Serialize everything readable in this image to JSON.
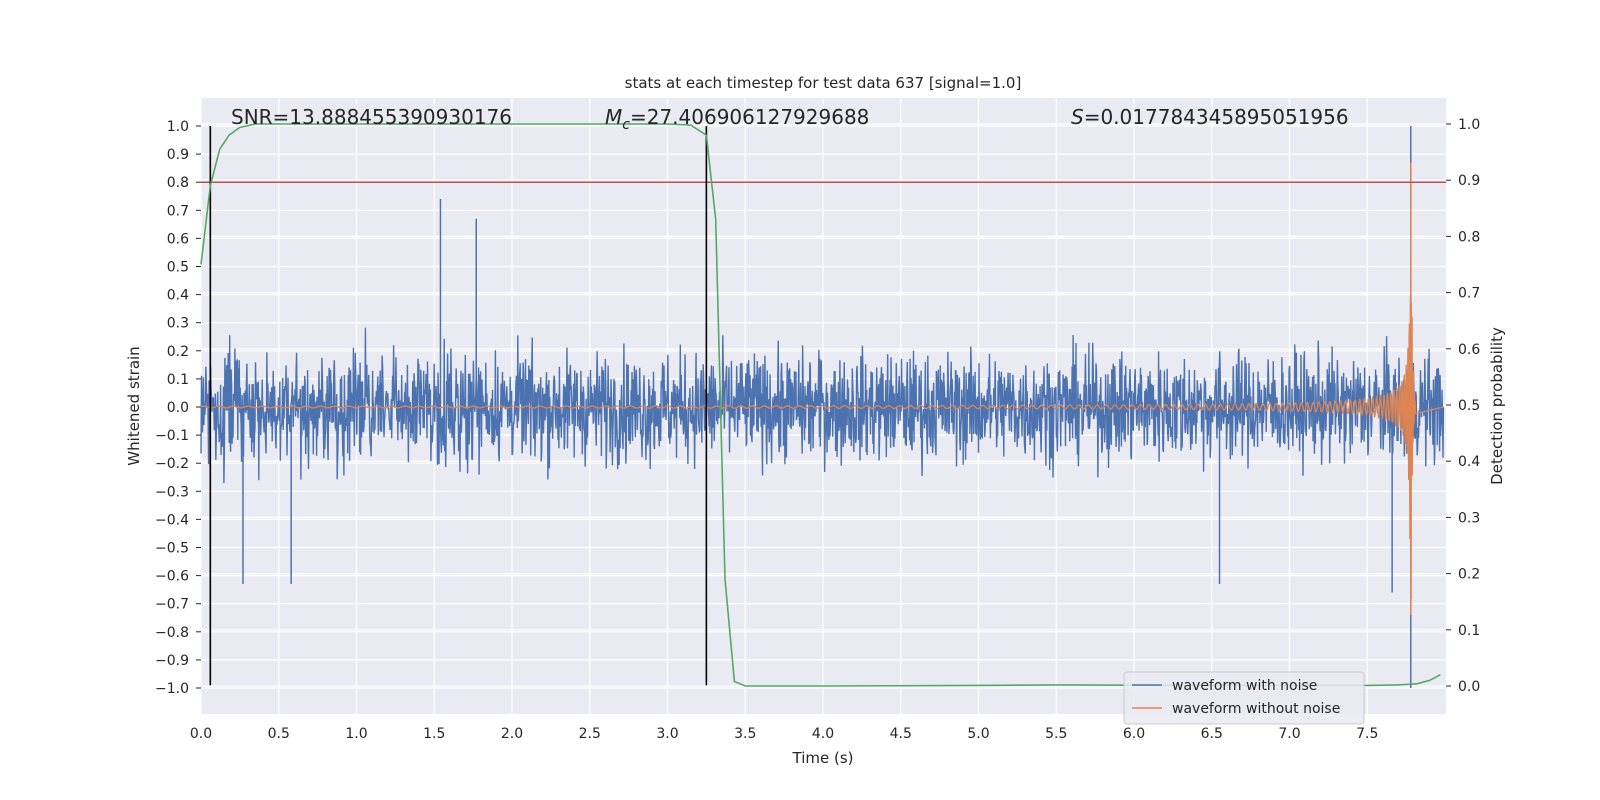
{
  "chart_data": {
    "type": "line",
    "title": "stats at each timestep for test data 637 [signal=1.0]",
    "xlabel": "Time (s)",
    "ylabel_left": "Whitened strain",
    "ylabel_right": "Detection probability",
    "xlim": [
      0.0,
      7.99
    ],
    "ylim_left": [
      -1.08,
      1.08
    ],
    "ylim_right": [
      -0.04,
      1.04
    ],
    "x_ticks": [
      "0.0",
      "0.5",
      "1.0",
      "1.5",
      "2.0",
      "2.5",
      "3.0",
      "3.5",
      "4.0",
      "4.5",
      "5.0",
      "5.5",
      "6.0",
      "6.5",
      "7.0",
      "7.5"
    ],
    "y_left_ticks": [
      "1.0",
      "0.9",
      "0.8",
      "0.7",
      "0.6",
      "0.5",
      "0.4",
      "0.3",
      "0.2",
      "0.1",
      "0.0",
      "−0.1",
      "−0.2",
      "−0.3",
      "−0.4",
      "−0.5",
      "−0.6",
      "−0.7",
      "−0.8",
      "−0.9",
      "−1.0"
    ],
    "y_right_ticks": [
      "1.0",
      "0.9",
      "0.8",
      "0.7",
      "0.6",
      "0.5",
      "0.4",
      "0.3",
      "0.2",
      "0.1",
      "0.0"
    ],
    "annotations": {
      "snr": "SNR=13.888455390930176",
      "mc_symbol": "M",
      "mc_subscript": "c",
      "mc_value": "=27.406906127929688",
      "s_symbol": "S",
      "s_value": "=0.017784345895051956"
    },
    "threshold": {
      "value": 0.8,
      "color": "#c44e52"
    },
    "vertical_markers": [
      0.06,
      3.25
    ],
    "series": [
      {
        "name": "waveform with noise",
        "color": "#4c72b0",
        "axis": "left",
        "description_range": [
          -1.0,
          1.0
        ],
        "peaks": [
          {
            "x": 1.54,
            "y": 0.74
          },
          {
            "x": 1.77,
            "y": 0.67
          },
          {
            "x": 7.78,
            "y": 1.0
          },
          {
            "x": 7.78,
            "y": -1.0
          },
          {
            "x": 0.27,
            "y": -0.63
          },
          {
            "x": 0.58,
            "y": -0.63
          },
          {
            "x": 7.66,
            "y": -0.66
          },
          {
            "x": 6.55,
            "y": -0.63
          }
        ]
      },
      {
        "name": "waveform without noise",
        "color": "#dd8452",
        "axis": "left",
        "chirp_merger_time": 7.78,
        "peak_amplitude": 0.87,
        "min_amplitude": -0.74
      },
      {
        "name": "detection probability",
        "color": "#55a868",
        "axis": "right",
        "x": [
          0.0,
          0.06,
          0.12,
          0.18,
          0.25,
          0.35,
          0.5,
          1.0,
          2.0,
          3.0,
          3.15,
          3.25,
          3.31,
          3.37,
          3.43,
          3.5,
          4.0,
          5.0,
          5.5,
          6.0,
          7.0,
          7.5,
          7.7,
          7.82,
          7.9,
          7.97
        ],
        "y": [
          0.75,
          0.89,
          0.955,
          0.98,
          0.994,
          1.0,
          1.0,
          1.0,
          1.0,
          1.0,
          0.998,
          0.98,
          0.83,
          0.19,
          0.008,
          0.0,
          0.0,
          0.001,
          0.002,
          0.0015,
          0.001,
          0.001,
          0.002,
          0.004,
          0.01,
          0.02
        ]
      }
    ],
    "legend": {
      "placement": "lower-right",
      "entries": [
        "waveform with noise",
        "waveform without noise"
      ]
    }
  }
}
